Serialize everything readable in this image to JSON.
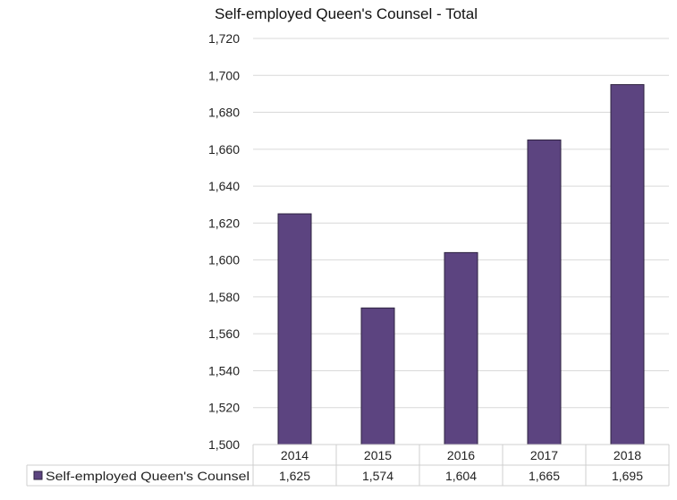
{
  "chart_data": {
    "type": "bar",
    "title": "Self-employed Queen's Counsel - Total",
    "categories": [
      "2014",
      "2015",
      "2016",
      "2017",
      "2018"
    ],
    "series": [
      {
        "name": "Self-employed Queen's Counsel",
        "values": [
          1625,
          1574,
          1604,
          1665,
          1695
        ],
        "value_labels": [
          "1,625",
          "1,574",
          "1,604",
          "1,665",
          "1,695"
        ]
      }
    ],
    "ylim": [
      1500,
      1720
    ],
    "y_ticks": [
      "1,500",
      "1,520",
      "1,540",
      "1,560",
      "1,580",
      "1,600",
      "1,620",
      "1,640",
      "1,660",
      "1,680",
      "1,700",
      "1,720"
    ],
    "grid": true,
    "legend": "data-table",
    "bar_color": "#5c4480"
  }
}
